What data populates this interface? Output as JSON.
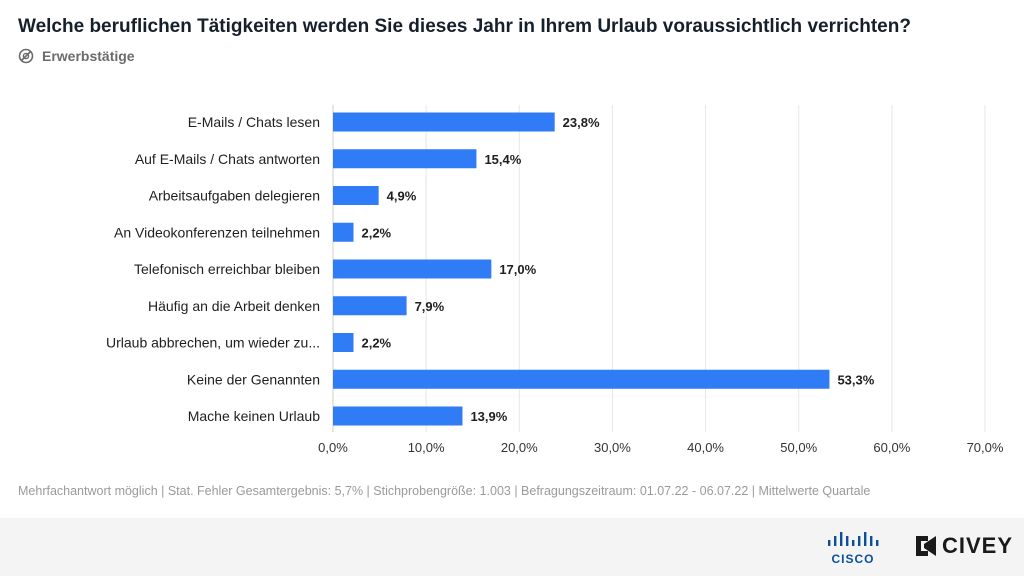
{
  "header": {
    "title": "Welche beruflichen Tätigkeiten werden Sie dieses Jahr in Ihrem Urlaub voraussichtlich verrichten?",
    "subtitle": "Erwerbstätige",
    "subtitle_icon": "target-group-icon"
  },
  "chart_data": {
    "type": "bar",
    "orientation": "horizontal",
    "title": "Welche beruflichen Tätigkeiten werden Sie dieses Jahr in Ihrem Urlaub voraussichtlich verrichten?",
    "categories": [
      "E-Mails / Chats lesen",
      "Auf E-Mails / Chats antworten",
      "Arbeitsaufgaben delegieren",
      "An Videokonferenzen teilnehmen",
      "Telefonisch erreichbar bleiben",
      "Häufig an die Arbeit denken",
      "Urlaub abbrechen, um wieder zu...",
      "Keine der Genannten",
      "Mache keinen Urlaub"
    ],
    "values": [
      23.8,
      15.4,
      4.9,
      2.2,
      17.0,
      7.9,
      2.2,
      53.3,
      13.9
    ],
    "value_labels": [
      "23,8%",
      "15,4%",
      "4,9%",
      "2,2%",
      "17,0%",
      "7,9%",
      "2,2%",
      "53,3%",
      "13,9%"
    ],
    "xlim": [
      0,
      70
    ],
    "xticks": [
      0,
      10,
      20,
      30,
      40,
      50,
      60,
      70
    ],
    "xtick_labels": [
      "0,0%",
      "10,0%",
      "20,0%",
      "30,0%",
      "40,0%",
      "50,0%",
      "60,0%",
      "70,0%"
    ],
    "xlabel": "",
    "ylabel": "",
    "grid": true,
    "bar_color": "#2f7cf6"
  },
  "footnote": "Mehrfachantwort möglich | Stat. Fehler Gesamtergebnis: 5,7% | Stichprobengröße: 1.003 | Befragungszeitraum: 01.07.22 - 06.07.22 | Mittelwerte Quartale",
  "footer": {
    "logo_cisco": "CISCO",
    "logo_civey": "CIVEY"
  }
}
